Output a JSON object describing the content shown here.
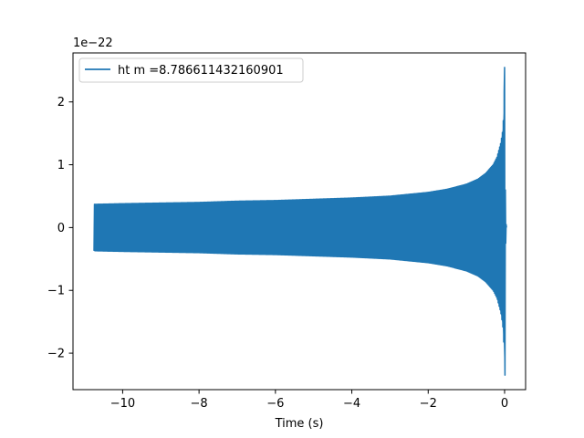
{
  "chart_data": {
    "type": "line",
    "xlabel": "Time (s)",
    "ylabel": "",
    "y_offset_label": "1e−22",
    "xlim": [
      -11.3,
      0.55
    ],
    "ylim": [
      -2.58,
      2.78
    ],
    "y_scale_factor": 1e-22,
    "xticks": [
      -10,
      -8,
      -6,
      -4,
      -2,
      0
    ],
    "xtick_labels": [
      "−10",
      "−8",
      "−6",
      "−4",
      "−2",
      "0"
    ],
    "yticks": [
      -2,
      -1,
      0,
      1,
      2
    ],
    "ytick_labels": [
      "−2",
      "−1",
      "0",
      "1",
      "2"
    ],
    "grid": false,
    "legend": {
      "position": "upper-left",
      "entries": [
        "ht m =8.786611432160901"
      ]
    },
    "series": [
      {
        "name": "ht m =8.786611432160901",
        "color": "#1f77b4",
        "start_time": -10.75,
        "end_time": 0.05,
        "envelope": {
          "t": [
            -10.75,
            -10.0,
            -9.0,
            -8.0,
            -7.0,
            -6.0,
            -5.0,
            -4.0,
            -3.0,
            -2.0,
            -1.5,
            -1.0,
            -0.7,
            -0.5,
            -0.3,
            -0.2,
            -0.1,
            -0.05,
            -0.02,
            0.0
          ],
          "upper": [
            0.37,
            0.38,
            0.39,
            0.4,
            0.42,
            0.43,
            0.45,
            0.47,
            0.5,
            0.56,
            0.61,
            0.69,
            0.77,
            0.86,
            1.0,
            1.12,
            1.35,
            1.55,
            1.85,
            2.55
          ],
          "lower": [
            -0.37,
            -0.38,
            -0.39,
            -0.4,
            -0.42,
            -0.43,
            -0.45,
            -0.47,
            -0.5,
            -0.56,
            -0.61,
            -0.69,
            -0.77,
            -0.86,
            -1.0,
            -1.12,
            -1.35,
            -1.55,
            -1.85,
            -2.35
          ]
        }
      }
    ]
  }
}
